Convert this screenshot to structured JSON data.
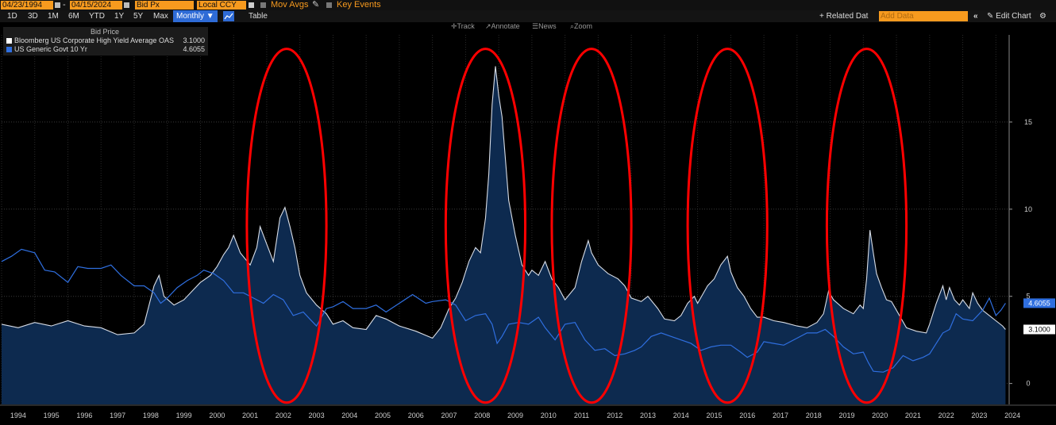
{
  "toolbar": {
    "start_date": "04/23/1994",
    "end_date": "04/15/2024",
    "field": "Bid Px",
    "currency": "Local CCY",
    "mov_avgs": "Mov Avgs",
    "key_events": "Key Events"
  },
  "periods": [
    "1D",
    "3D",
    "1M",
    "6M",
    "YTD",
    "1Y",
    "5Y",
    "Max"
  ],
  "frequency": "Monthly ▼",
  "table_label": "Table",
  "right_tools": {
    "related": "+ Related Dat",
    "add_data": "Add Data",
    "edit_chart": "Edit Chart"
  },
  "chart_tools": [
    "Track",
    "Annotate",
    "News",
    "Zoom"
  ],
  "legend": {
    "header": "Bid Price"
  },
  "colors": {
    "hy_line": "#d8dde6",
    "hy_fill": "#0d2a4f",
    "treasury": "#2f6fe0",
    "highlight": "#ff0000",
    "input_bg": "#f79a1e"
  },
  "chart_data": {
    "type": "line",
    "x_range": [
      1994.0,
      2024.4
    ],
    "ylim": [
      -1.2,
      20
    ],
    "y_ticks": [
      0,
      5,
      10,
      15
    ],
    "y_tick_labels": [
      "0",
      "5",
      "10",
      "15"
    ],
    "x_tick_labels": [
      "1994",
      "1995",
      "1996",
      "1997",
      "1998",
      "1999",
      "2000",
      "2001",
      "2002",
      "2003",
      "2004",
      "2005",
      "2006",
      "2007",
      "2008",
      "2009",
      "2010",
      "2011",
      "2012",
      "2013",
      "2014",
      "2015",
      "2016",
      "2017",
      "2018",
      "2019",
      "2020",
      "2021",
      "2022",
      "2023",
      "2024"
    ],
    "grid": true,
    "legend_position": "top-left",
    "series": [
      {
        "name": "Bloomberg US Corporate High Yield Average OAS",
        "last_value": "3.1000",
        "style": "area",
        "x": [
          1994.0,
          1994.5,
          1995.0,
          1995.5,
          1996.0,
          1996.5,
          1997.0,
          1997.5,
          1998.0,
          1998.3,
          1998.6,
          1998.75,
          1998.9,
          1999.2,
          1999.5,
          1999.8,
          2000.0,
          2000.3,
          2000.5,
          2000.7,
          2000.85,
          2001.0,
          2001.2,
          2001.5,
          2001.7,
          2001.8,
          2002.0,
          2002.2,
          2002.4,
          2002.55,
          2002.7,
          2002.85,
          2003.0,
          2003.2,
          2003.5,
          2003.8,
          2004.0,
          2004.3,
          2004.6,
          2005.0,
          2005.3,
          2005.6,
          2006.0,
          2006.5,
          2007.0,
          2007.25,
          2007.5,
          2007.7,
          2007.9,
          2008.1,
          2008.3,
          2008.45,
          2008.6,
          2008.7,
          2008.8,
          2008.9,
          2009.0,
          2009.1,
          2009.3,
          2009.5,
          2009.7,
          2009.9,
          2010.0,
          2010.2,
          2010.4,
          2010.6,
          2010.8,
          2011.0,
          2011.3,
          2011.5,
          2011.7,
          2011.8,
          2012.0,
          2012.3,
          2012.6,
          2012.8,
          2013.0,
          2013.3,
          2013.5,
          2013.8,
          2014.0,
          2014.3,
          2014.5,
          2014.7,
          2014.9,
          2015.0,
          2015.3,
          2015.5,
          2015.7,
          2015.9,
          2016.0,
          2016.2,
          2016.4,
          2016.6,
          2016.8,
          2017.0,
          2017.3,
          2017.6,
          2018.0,
          2018.3,
          2018.6,
          2018.8,
          2018.95,
          2019.1,
          2019.4,
          2019.7,
          2019.9,
          2020.0,
          2020.1,
          2020.2,
          2020.3,
          2020.4,
          2020.55,
          2020.7,
          2020.85,
          2021.0,
          2021.3,
          2021.6,
          2021.9,
          2022.0,
          2022.2,
          2022.4,
          2022.5,
          2022.6,
          2022.75,
          2022.9,
          2023.0,
          2023.2,
          2023.3,
          2023.45,
          2023.6,
          2023.8,
          2024.0,
          2024.2,
          2024.29
        ],
        "y": [
          3.4,
          3.2,
          3.5,
          3.3,
          3.6,
          3.3,
          3.2,
          2.8,
          2.9,
          3.4,
          5.6,
          6.2,
          5.0,
          4.5,
          4.8,
          5.4,
          5.8,
          6.2,
          6.7,
          7.4,
          7.8,
          8.5,
          7.5,
          6.8,
          7.8,
          9.0,
          8.0,
          7.0,
          9.5,
          10.1,
          9.0,
          7.8,
          6.2,
          5.2,
          4.5,
          4.0,
          3.4,
          3.6,
          3.2,
          3.1,
          3.9,
          3.7,
          3.3,
          3.0,
          2.6,
          3.2,
          4.3,
          4.9,
          5.8,
          7.0,
          7.8,
          7.5,
          9.5,
          12.0,
          16.0,
          18.2,
          16.5,
          15.3,
          10.5,
          8.5,
          6.8,
          6.2,
          6.5,
          6.2,
          7.0,
          6.0,
          5.5,
          4.8,
          5.5,
          7.0,
          8.2,
          7.5,
          6.8,
          6.3,
          6.0,
          5.6,
          4.9,
          4.7,
          5.0,
          4.3,
          3.7,
          3.6,
          3.9,
          4.6,
          5.0,
          4.6,
          5.6,
          6.0,
          6.8,
          7.3,
          6.4,
          5.5,
          5.0,
          4.3,
          3.8,
          3.8,
          3.6,
          3.5,
          3.3,
          3.2,
          3.5,
          4.0,
          5.3,
          4.8,
          4.3,
          4.0,
          4.5,
          4.3,
          6.0,
          8.8,
          7.5,
          6.3,
          5.5,
          4.8,
          4.7,
          4.2,
          3.2,
          3.0,
          2.9,
          3.4,
          4.6,
          5.6,
          4.8,
          5.5,
          4.8,
          4.5,
          4.8,
          4.3,
          5.2,
          4.6,
          4.2,
          3.9,
          3.6,
          3.3,
          3.1
        ]
      },
      {
        "name": "US Generic Govt 10 Yr",
        "last_value": "4.6055",
        "style": "line",
        "x": [
          1994.0,
          1994.3,
          1994.6,
          1995.0,
          1995.3,
          1995.6,
          1996.0,
          1996.3,
          1996.6,
          1997.0,
          1997.3,
          1997.6,
          1998.0,
          1998.3,
          1998.6,
          1998.8,
          1999.0,
          1999.3,
          1999.6,
          1999.9,
          2000.1,
          2000.4,
          2000.7,
          2001.0,
          2001.3,
          2001.6,
          2001.9,
          2002.2,
          2002.5,
          2002.8,
          2003.1,
          2003.3,
          2003.5,
          2003.8,
          2004.0,
          2004.3,
          2004.6,
          2005.0,
          2005.3,
          2005.6,
          2006.0,
          2006.4,
          2006.8,
          2007.0,
          2007.4,
          2007.7,
          2008.0,
          2008.3,
          2008.6,
          2008.8,
          2008.95,
          2009.1,
          2009.3,
          2009.6,
          2009.9,
          2010.2,
          2010.4,
          2010.7,
          2011.0,
          2011.3,
          2011.6,
          2011.9,
          2012.2,
          2012.5,
          2012.8,
          2013.1,
          2013.3,
          2013.6,
          2013.9,
          2014.2,
          2014.5,
          2014.8,
          2015.1,
          2015.4,
          2015.7,
          2016.0,
          2016.3,
          2016.5,
          2016.8,
          2017.0,
          2017.3,
          2017.6,
          2018.0,
          2018.3,
          2018.6,
          2018.85,
          2019.1,
          2019.4,
          2019.7,
          2020.0,
          2020.15,
          2020.3,
          2020.6,
          2020.9,
          2021.2,
          2021.5,
          2021.8,
          2022.0,
          2022.2,
          2022.4,
          2022.6,
          2022.8,
          2023.0,
          2023.3,
          2023.6,
          2023.8,
          2024.0,
          2024.15,
          2024.29
        ],
        "y": [
          7.0,
          7.3,
          7.7,
          7.5,
          6.5,
          6.4,
          5.8,
          6.7,
          6.6,
          6.6,
          6.8,
          6.2,
          5.6,
          5.6,
          5.2,
          4.6,
          4.9,
          5.5,
          5.9,
          6.2,
          6.5,
          6.3,
          5.9,
          5.2,
          5.2,
          4.9,
          4.6,
          5.1,
          4.8,
          3.9,
          4.1,
          3.7,
          3.3,
          4.3,
          4.4,
          4.7,
          4.3,
          4.3,
          4.5,
          4.1,
          4.6,
          5.1,
          4.6,
          4.7,
          4.8,
          4.5,
          3.6,
          3.9,
          4.0,
          3.4,
          2.3,
          2.7,
          3.4,
          3.5,
          3.4,
          3.8,
          3.2,
          2.5,
          3.4,
          3.5,
          2.5,
          1.9,
          2.0,
          1.6,
          1.7,
          1.9,
          2.1,
          2.7,
          2.9,
          2.7,
          2.5,
          2.3,
          1.9,
          2.1,
          2.2,
          2.2,
          1.8,
          1.5,
          1.8,
          2.4,
          2.3,
          2.2,
          2.6,
          2.9,
          2.9,
          3.1,
          2.7,
          2.1,
          1.7,
          1.8,
          1.2,
          0.7,
          0.65,
          0.9,
          1.6,
          1.3,
          1.5,
          1.7,
          2.3,
          2.9,
          3.1,
          4.0,
          3.7,
          3.6,
          4.2,
          4.9,
          3.9,
          4.2,
          4.6055
        ]
      }
    ],
    "annotations": [
      {
        "type": "ellipse",
        "x_center": 2002.6,
        "x_half_width": 1.2,
        "y_top": 19.2,
        "y_bottom": -1.1
      },
      {
        "type": "ellipse",
        "x_center": 2008.6,
        "x_half_width": 1.2,
        "y_top": 19.2,
        "y_bottom": -1.1
      },
      {
        "type": "ellipse",
        "x_center": 2011.8,
        "x_half_width": 1.2,
        "y_top": 19.2,
        "y_bottom": -1.1
      },
      {
        "type": "ellipse",
        "x_center": 2015.9,
        "x_half_width": 1.2,
        "y_top": 19.2,
        "y_bottom": -1.1
      },
      {
        "type": "ellipse",
        "x_center": 2020.1,
        "x_half_width": 1.2,
        "y_top": 19.2,
        "y_bottom": -1.1
      }
    ]
  }
}
